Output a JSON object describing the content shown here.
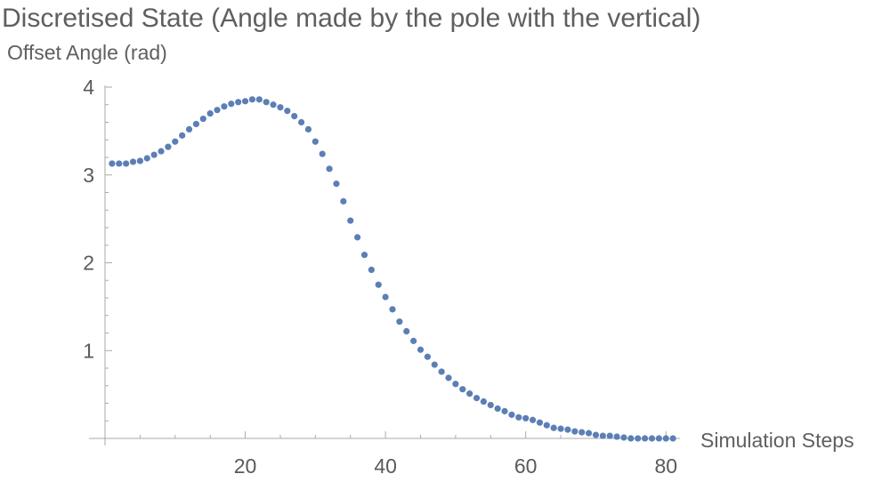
{
  "chart_data": {
    "type": "scatter",
    "title": "Discretised State (Angle made by the pole with the vertical)",
    "ylabel": "Offset Angle (rad)",
    "xlabel": "Simulation Steps",
    "xlim": [
      0,
      82
    ],
    "ylim": [
      0,
      4
    ],
    "xticks": [
      20,
      40,
      60,
      80
    ],
    "yticks": [
      1,
      2,
      3,
      4
    ],
    "grid": false,
    "marker_color": "#5b7fb5",
    "axis_color": "#aaaaaa",
    "series": [
      {
        "x": [
          1,
          2,
          3,
          4,
          5,
          6,
          7,
          8,
          9,
          10,
          11,
          12,
          13,
          14,
          15,
          16,
          17,
          18,
          19,
          20,
          21,
          22,
          23,
          24,
          25,
          26,
          27,
          28,
          29,
          30,
          31,
          32,
          33,
          34,
          35,
          36,
          37,
          38,
          39,
          40,
          41,
          42,
          43,
          44,
          45,
          46,
          47,
          48,
          49,
          50,
          51,
          52,
          53,
          54,
          55,
          56,
          57,
          58,
          59,
          60,
          61,
          62,
          63,
          64,
          65,
          66,
          67,
          68,
          69,
          70,
          71,
          72,
          73,
          74,
          75,
          76,
          77,
          78,
          79,
          80,
          81
        ],
        "y": [
          3.13,
          3.13,
          3.13,
          3.15,
          3.16,
          3.19,
          3.23,
          3.27,
          3.32,
          3.38,
          3.45,
          3.52,
          3.58,
          3.64,
          3.7,
          3.74,
          3.78,
          3.81,
          3.83,
          3.84,
          3.86,
          3.86,
          3.83,
          3.8,
          3.77,
          3.73,
          3.67,
          3.6,
          3.52,
          3.38,
          3.24,
          3.07,
          2.9,
          2.7,
          2.48,
          2.29,
          2.09,
          1.92,
          1.75,
          1.61,
          1.47,
          1.33,
          1.22,
          1.11,
          1.01,
          0.93,
          0.84,
          0.76,
          0.69,
          0.62,
          0.56,
          0.51,
          0.46,
          0.42,
          0.38,
          0.34,
          0.31,
          0.27,
          0.24,
          0.23,
          0.21,
          0.18,
          0.15,
          0.12,
          0.11,
          0.1,
          0.08,
          0.07,
          0.06,
          0.04,
          0.03,
          0.03,
          0.02,
          0.01,
          0.0,
          0.0,
          0.0,
          0.0,
          0.0,
          0.0,
          0.0
        ]
      }
    ]
  }
}
